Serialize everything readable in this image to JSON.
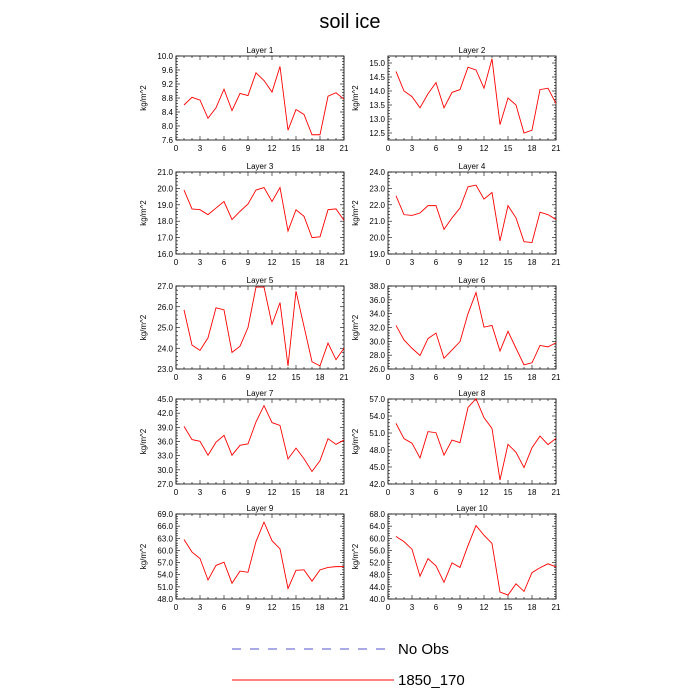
{
  "figure": {
    "title": "soil ice",
    "legend": [
      {
        "label": "No Obs",
        "color": "#5555cc",
        "dashed": true
      },
      {
        "label": "1850_170",
        "color": "#ff0000",
        "dashed": false
      }
    ]
  },
  "chart_data": [
    {
      "type": "line",
      "title": "Layer 1",
      "ylabel": "kg/m^2",
      "x": [
        1,
        2,
        3,
        4,
        5,
        6,
        7,
        8,
        9,
        10,
        11,
        12,
        13,
        14,
        15,
        16,
        17,
        18,
        19,
        20,
        21
      ],
      "xlim": [
        0,
        21
      ],
      "xticks": [
        0,
        3,
        6,
        9,
        12,
        15,
        18,
        21
      ],
      "ylim": [
        7.6,
        10.0
      ],
      "yticks": [
        7.6,
        8.0,
        8.4,
        8.8,
        9.2,
        9.6,
        10.0
      ],
      "ytick_decimals": 1,
      "series": [
        {
          "name": "1850_170",
          "color": "#ff0000",
          "values": [
            8.6,
            8.82,
            8.74,
            8.22,
            8.52,
            9.05,
            8.44,
            8.93,
            8.87,
            9.52,
            9.3,
            8.97,
            9.7,
            7.88,
            8.47,
            8.33,
            7.75,
            7.75,
            8.85,
            8.95,
            8.77
          ]
        }
      ]
    },
    {
      "type": "line",
      "title": "Layer 2",
      "ylabel": "kg/m^2",
      "x": [
        1,
        2,
        3,
        4,
        5,
        6,
        7,
        8,
        9,
        10,
        11,
        12,
        13,
        14,
        15,
        16,
        17,
        18,
        19,
        20,
        21
      ],
      "xlim": [
        0,
        21
      ],
      "xticks": [
        0,
        3,
        6,
        9,
        12,
        15,
        18,
        21
      ],
      "ylim": [
        12.25,
        15.25
      ],
      "yticks": [
        12.5,
        13.0,
        13.5,
        14.0,
        14.5,
        15.0
      ],
      "ytick_decimals": 1,
      "series": [
        {
          "name": "1850_170",
          "color": "#ff0000",
          "values": [
            14.7,
            14.0,
            13.8,
            13.4,
            13.9,
            14.3,
            13.4,
            13.95,
            14.05,
            14.85,
            14.75,
            14.1,
            15.15,
            12.8,
            13.75,
            13.5,
            12.5,
            12.6,
            14.05,
            14.1,
            13.55
          ]
        }
      ]
    },
    {
      "type": "line",
      "title": "Layer 3",
      "ylabel": "kg/m^2",
      "x": [
        1,
        2,
        3,
        4,
        5,
        6,
        7,
        8,
        9,
        10,
        11,
        12,
        13,
        14,
        15,
        16,
        17,
        18,
        19,
        20,
        21
      ],
      "xlim": [
        0,
        21
      ],
      "xticks": [
        0,
        3,
        6,
        9,
        12,
        15,
        18,
        21
      ],
      "ylim": [
        16.0,
        21.0
      ],
      "yticks": [
        16.0,
        17.0,
        18.0,
        19.0,
        20.0,
        21.0
      ],
      "ytick_decimals": 1,
      "series": [
        {
          "name": "1850_170",
          "color": "#ff0000",
          "values": [
            19.9,
            18.75,
            18.7,
            18.4,
            18.8,
            19.2,
            18.1,
            18.6,
            19.05,
            19.9,
            20.05,
            19.2,
            20.05,
            17.4,
            18.7,
            18.3,
            17.0,
            17.05,
            18.7,
            18.75,
            18.05
          ]
        }
      ]
    },
    {
      "type": "line",
      "title": "Layer 4",
      "ylabel": "kg/m^2",
      "x": [
        1,
        2,
        3,
        4,
        5,
        6,
        7,
        8,
        9,
        10,
        11,
        12,
        13,
        14,
        15,
        16,
        17,
        18,
        19,
        20,
        21
      ],
      "xlim": [
        0,
        21
      ],
      "xticks": [
        0,
        3,
        6,
        9,
        12,
        15,
        18,
        21
      ],
      "ylim": [
        19.0,
        24.0
      ],
      "yticks": [
        19.0,
        20.0,
        21.0,
        22.0,
        23.0,
        24.0
      ],
      "ytick_decimals": 1,
      "series": [
        {
          "name": "1850_170",
          "color": "#ff0000",
          "values": [
            22.55,
            21.4,
            21.35,
            21.5,
            21.95,
            21.95,
            20.5,
            21.2,
            21.8,
            23.1,
            23.2,
            22.35,
            22.75,
            19.8,
            21.95,
            21.2,
            19.75,
            19.7,
            21.55,
            21.4,
            21.1
          ]
        }
      ]
    },
    {
      "type": "line",
      "title": "Layer 5",
      "ylabel": "kg/m^2",
      "x": [
        1,
        2,
        3,
        4,
        5,
        6,
        7,
        8,
        9,
        10,
        11,
        12,
        13,
        14,
        15,
        16,
        17,
        18,
        19,
        20,
        21
      ],
      "xlim": [
        0,
        21
      ],
      "xticks": [
        0,
        3,
        6,
        9,
        12,
        15,
        18,
        21
      ],
      "ylim": [
        23.0,
        27.0
      ],
      "yticks": [
        23.0,
        24.0,
        25.0,
        26.0,
        27.0
      ],
      "ytick_decimals": 1,
      "series": [
        {
          "name": "1850_170",
          "color": "#ff0000",
          "values": [
            25.85,
            24.15,
            23.9,
            24.5,
            25.95,
            25.85,
            23.8,
            24.1,
            25.0,
            26.95,
            26.95,
            25.15,
            26.2,
            23.15,
            26.75,
            25.05,
            23.35,
            23.15,
            24.25,
            23.45,
            24.0
          ]
        }
      ]
    },
    {
      "type": "line",
      "title": "Layer 6",
      "ylabel": "kg/m^2",
      "x": [
        1,
        2,
        3,
        4,
        5,
        6,
        7,
        8,
        9,
        10,
        11,
        12,
        13,
        14,
        15,
        16,
        17,
        18,
        19,
        20,
        21
      ],
      "xlim": [
        0,
        21
      ],
      "xticks": [
        0,
        3,
        6,
        9,
        12,
        15,
        18,
        21
      ],
      "ylim": [
        26.0,
        38.0
      ],
      "yticks": [
        26.0,
        28.0,
        30.0,
        32.0,
        34.0,
        36.0,
        38.0
      ],
      "ytick_decimals": 1,
      "series": [
        {
          "name": "1850_170",
          "color": "#ff0000",
          "values": [
            32.3,
            30.2,
            29.0,
            27.95,
            30.4,
            31.2,
            27.55,
            28.75,
            29.95,
            34.0,
            37.05,
            32.05,
            32.3,
            28.6,
            31.45,
            29.0,
            26.6,
            26.9,
            29.4,
            29.2,
            29.8
          ]
        }
      ]
    },
    {
      "type": "line",
      "title": "Layer 7",
      "ylabel": "kg/m^2",
      "x": [
        1,
        2,
        3,
        4,
        5,
        6,
        7,
        8,
        9,
        10,
        11,
        12,
        13,
        14,
        15,
        16,
        17,
        18,
        19,
        20,
        21
      ],
      "xlim": [
        0,
        21
      ],
      "xticks": [
        0,
        3,
        6,
        9,
        12,
        15,
        18,
        21
      ],
      "ylim": [
        27.0,
        45.0
      ],
      "yticks": [
        27.0,
        30.0,
        33.0,
        36.0,
        39.0,
        42.0,
        45.0
      ],
      "ytick_decimals": 1,
      "series": [
        {
          "name": "1850_170",
          "color": "#ff0000",
          "values": [
            39.2,
            36.4,
            36.05,
            33.1,
            35.85,
            37.3,
            33.1,
            35.2,
            35.5,
            40.15,
            43.6,
            40.0,
            39.4,
            32.3,
            34.6,
            32.35,
            29.65,
            31.95,
            36.6,
            35.4,
            36.3
          ]
        }
      ]
    },
    {
      "type": "line",
      "title": "Layer 8",
      "ylabel": "kg/m^2",
      "x": [
        1,
        2,
        3,
        4,
        5,
        6,
        7,
        8,
        9,
        10,
        11,
        12,
        13,
        14,
        15,
        16,
        17,
        18,
        19,
        20,
        21
      ],
      "xlim": [
        0,
        21
      ],
      "xticks": [
        0,
        3,
        6,
        9,
        12,
        15,
        18,
        21
      ],
      "ylim": [
        42.0,
        57.0
      ],
      "yticks": [
        42.0,
        45.0,
        48.0,
        51.0,
        54.0,
        57.0
      ],
      "ytick_decimals": 1,
      "series": [
        {
          "name": "1850_170",
          "color": "#ff0000",
          "values": [
            52.7,
            50.0,
            49.2,
            46.6,
            51.25,
            51.05,
            47.1,
            49.75,
            49.3,
            55.5,
            57.05,
            53.7,
            51.8,
            42.7,
            49.0,
            47.6,
            44.9,
            48.4,
            50.45,
            48.95,
            50.05
          ]
        }
      ]
    },
    {
      "type": "line",
      "title": "Layer 9",
      "ylabel": "kg/m^2",
      "x": [
        1,
        2,
        3,
        4,
        5,
        6,
        7,
        8,
        9,
        10,
        11,
        12,
        13,
        14,
        15,
        16,
        17,
        18,
        19,
        20,
        21
      ],
      "xlim": [
        0,
        21
      ],
      "xticks": [
        0,
        3,
        6,
        9,
        12,
        15,
        18,
        21
      ],
      "ylim": [
        48.0,
        69.0
      ],
      "yticks": [
        48.0,
        51.0,
        54.0,
        57.0,
        60.0,
        63.0,
        66.0,
        69.0
      ],
      "ytick_decimals": 1,
      "series": [
        {
          "name": "1850_170",
          "color": "#ff0000",
          "values": [
            62.7,
            59.6,
            58.0,
            52.7,
            56.3,
            57.1,
            51.9,
            54.9,
            54.6,
            62.2,
            67.0,
            62.4,
            60.4,
            50.6,
            55.1,
            55.2,
            52.4,
            55.2,
            55.8,
            56.0,
            56.0
          ]
        }
      ]
    },
    {
      "type": "line",
      "title": "Layer 10",
      "ylabel": "kg/m^2",
      "x": [
        1,
        2,
        3,
        4,
        5,
        6,
        7,
        8,
        9,
        10,
        11,
        12,
        13,
        14,
        15,
        16,
        17,
        18,
        19,
        20,
        21
      ],
      "xlim": [
        0,
        21
      ],
      "xticks": [
        0,
        3,
        6,
        9,
        12,
        15,
        18,
        21
      ],
      "ylim": [
        40.0,
        68.0
      ],
      "yticks": [
        40.0,
        44.0,
        48.0,
        52.0,
        56.0,
        60.0,
        64.0,
        68.0
      ],
      "ytick_decimals": 1,
      "series": [
        {
          "name": "1850_170",
          "color": "#ff0000",
          "values": [
            60.6,
            58.9,
            56.4,
            47.5,
            53.3,
            50.9,
            45.5,
            51.9,
            50.4,
            57.6,
            64.2,
            61.0,
            58.3,
            42.3,
            41.3,
            45.0,
            42.5,
            48.7,
            50.3,
            51.6,
            50.6
          ]
        }
      ]
    }
  ]
}
